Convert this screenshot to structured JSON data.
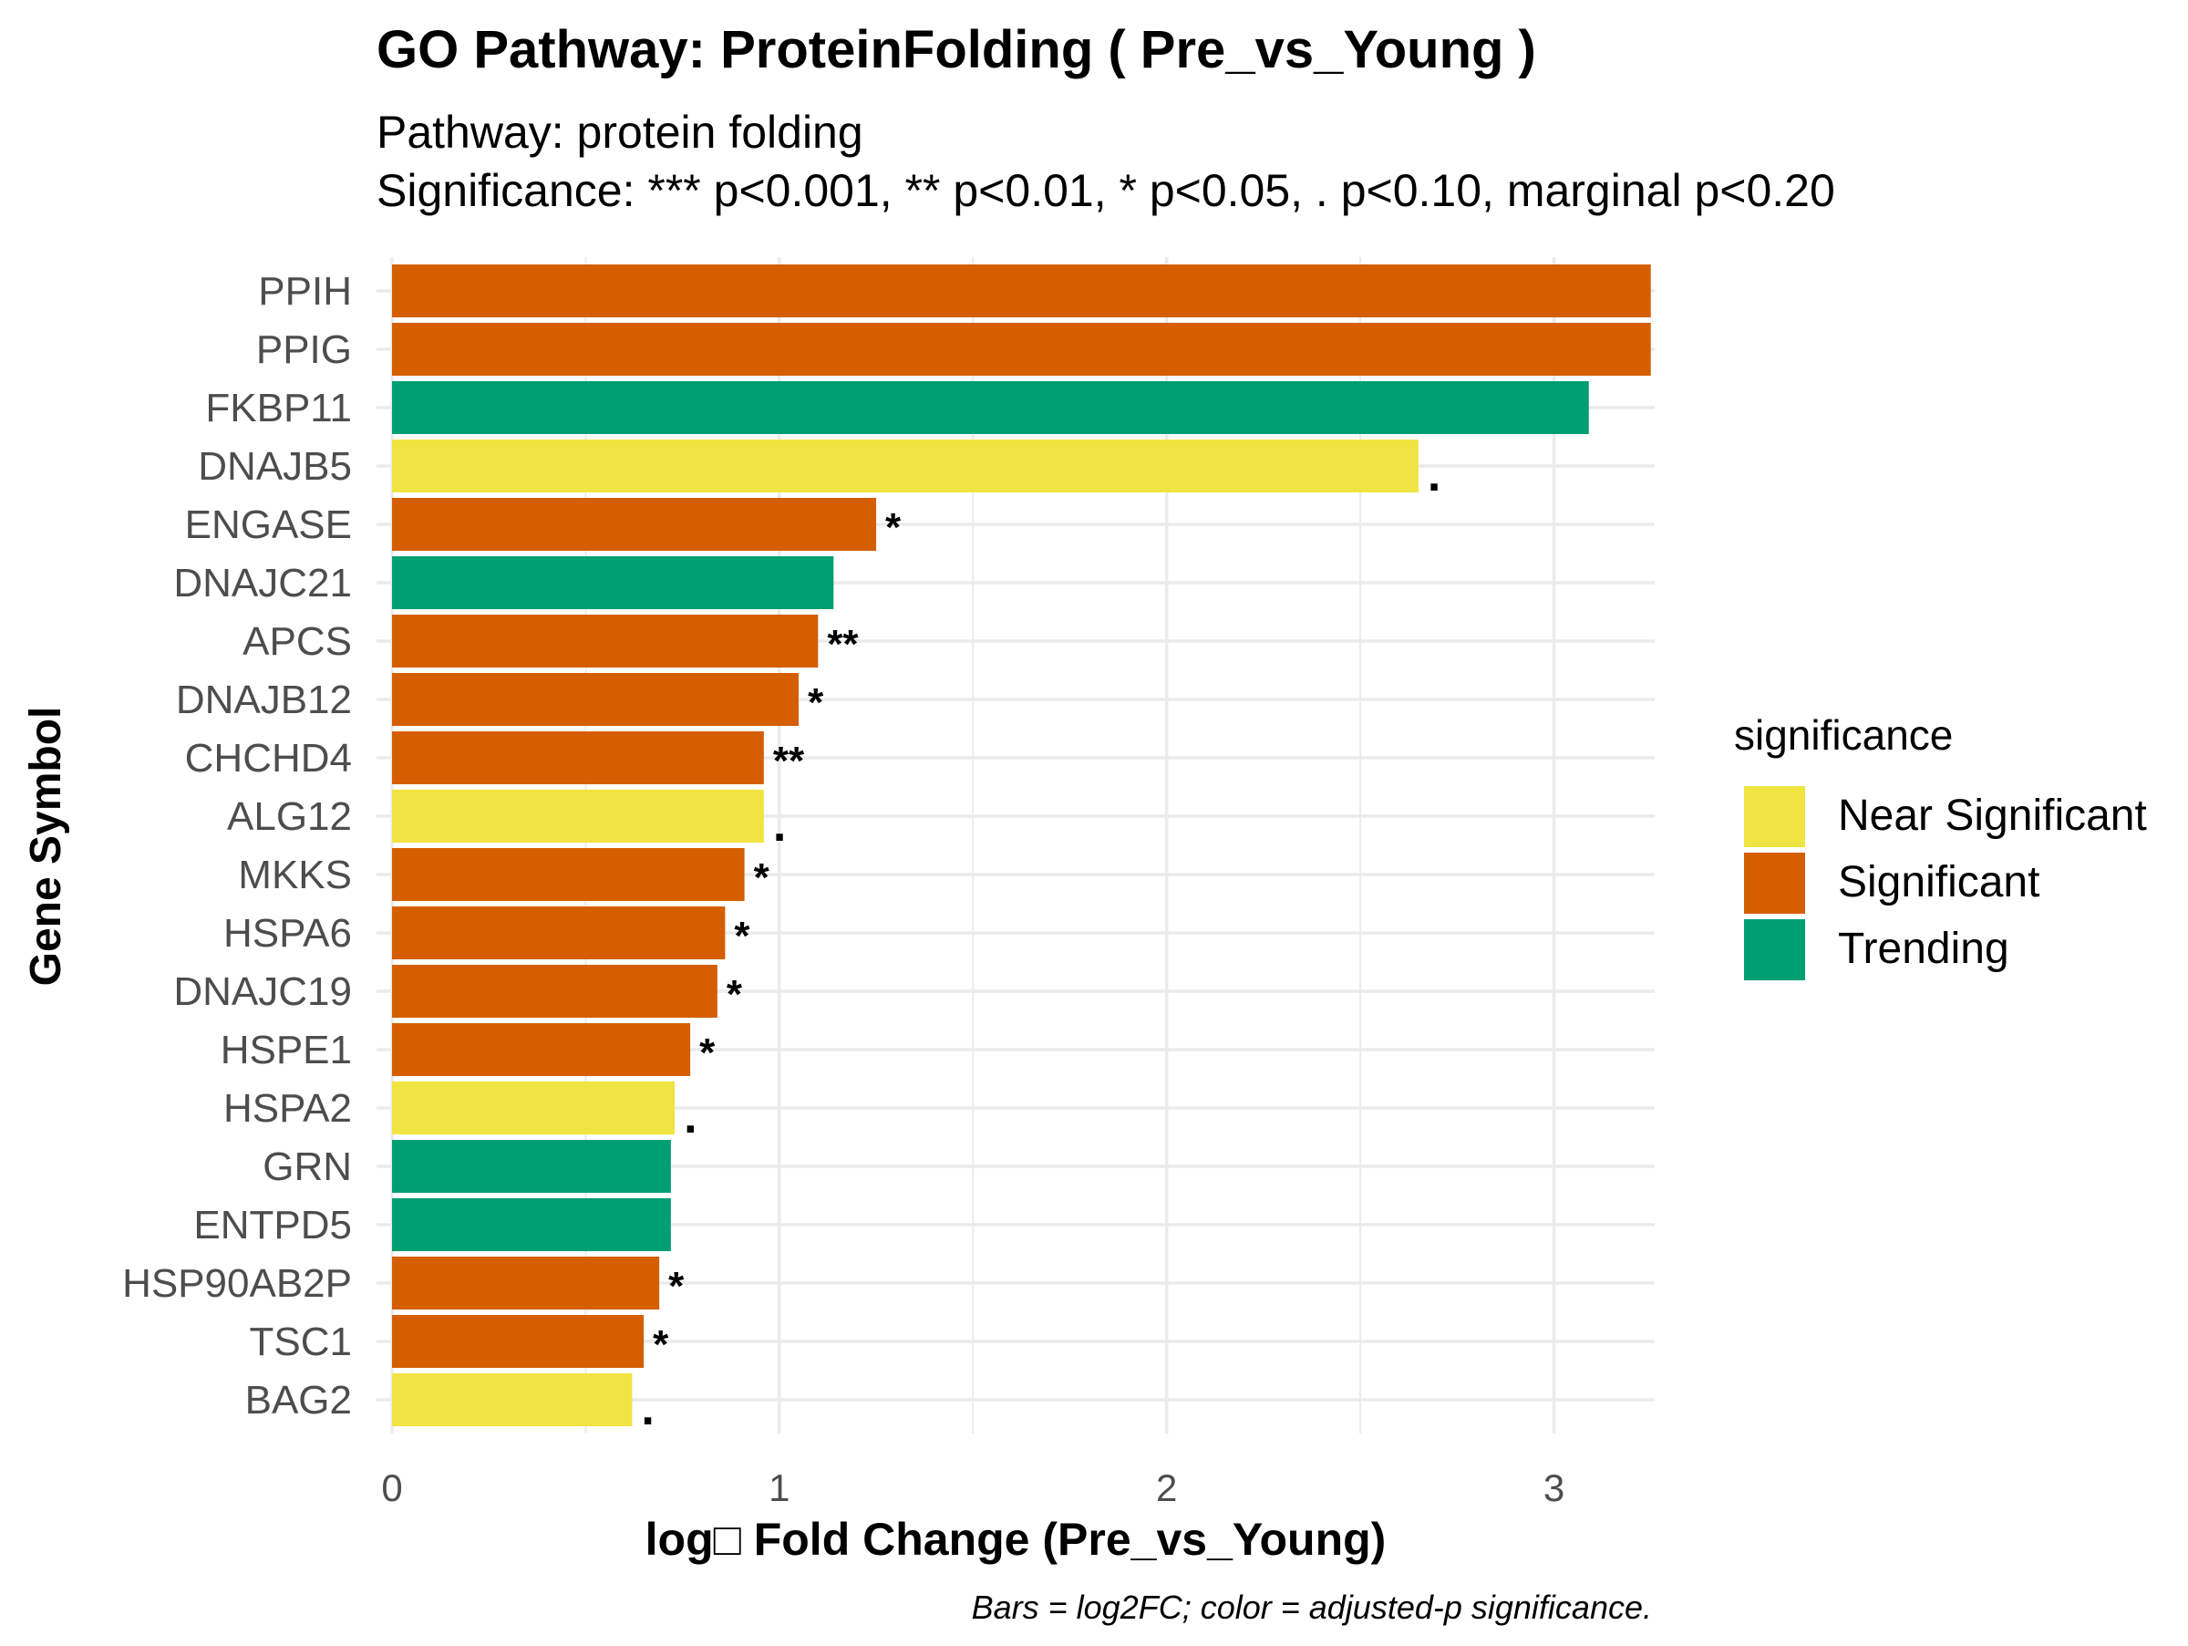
{
  "chart_data": {
    "type": "bar",
    "orientation": "horizontal",
    "title": "GO Pathway: ProteinFolding ( Pre_vs_Young )",
    "subtitle_lines": [
      "Pathway: protein folding",
      "Significance: *** p<0.001, ** p<0.01, * p<0.05, . p<0.10, marginal p<0.20"
    ],
    "xlabel": "log□ Fold Change (Pre_vs_Young)",
    "ylabel": "Gene Symbol",
    "caption": "Bars = log2FC; color = adjusted-p significance.",
    "xlim": [
      -0.04,
      3.26
    ],
    "xticks": [
      0,
      1,
      2,
      3
    ],
    "grid": true,
    "legend": {
      "title": "significance",
      "position": "right",
      "entries": [
        {
          "label": "Near Significant",
          "color": "#F0E442"
        },
        {
          "label": "Significant",
          "color": "#D55E00"
        },
        {
          "label": "Trending",
          "color": "#009E73"
        }
      ]
    },
    "colors": {
      "Near Significant": "#F0E442",
      "Significant": "#D55E00",
      "Trending": "#009E73"
    },
    "bars": [
      {
        "gene": "PPIH",
        "value": 3.25,
        "significance": "Significant",
        "marker": ""
      },
      {
        "gene": "PPIG",
        "value": 3.25,
        "significance": "Significant",
        "marker": ""
      },
      {
        "gene": "FKBP11",
        "value": 3.09,
        "significance": "Trending",
        "marker": ""
      },
      {
        "gene": "DNAJB5",
        "value": 2.65,
        "significance": "Near Significant",
        "marker": "."
      },
      {
        "gene": "ENGASE",
        "value": 1.25,
        "significance": "Significant",
        "marker": "*"
      },
      {
        "gene": "DNAJC21",
        "value": 1.14,
        "significance": "Trending",
        "marker": ""
      },
      {
        "gene": "APCS",
        "value": 1.1,
        "significance": "Significant",
        "marker": "**"
      },
      {
        "gene": "DNAJB12",
        "value": 1.05,
        "significance": "Significant",
        "marker": "*"
      },
      {
        "gene": "CHCHD4",
        "value": 0.96,
        "significance": "Significant",
        "marker": "**"
      },
      {
        "gene": "ALG12",
        "value": 0.96,
        "significance": "Near Significant",
        "marker": "."
      },
      {
        "gene": "MKKS",
        "value": 0.91,
        "significance": "Significant",
        "marker": "*"
      },
      {
        "gene": "HSPA6",
        "value": 0.86,
        "significance": "Significant",
        "marker": "*"
      },
      {
        "gene": "DNAJC19",
        "value": 0.84,
        "significance": "Significant",
        "marker": "*"
      },
      {
        "gene": "HSPE1",
        "value": 0.77,
        "significance": "Significant",
        "marker": "*"
      },
      {
        "gene": "HSPA2",
        "value": 0.73,
        "significance": "Near Significant",
        "marker": "."
      },
      {
        "gene": "GRN",
        "value": 0.72,
        "significance": "Trending",
        "marker": ""
      },
      {
        "gene": "ENTPD5",
        "value": 0.72,
        "significance": "Trending",
        "marker": ""
      },
      {
        "gene": "HSP90AB2P",
        "value": 0.69,
        "significance": "Significant",
        "marker": "*"
      },
      {
        "gene": "TSC1",
        "value": 0.65,
        "significance": "Significant",
        "marker": "*"
      },
      {
        "gene": "BAG2",
        "value": 0.62,
        "significance": "Near Significant",
        "marker": "."
      }
    ]
  }
}
